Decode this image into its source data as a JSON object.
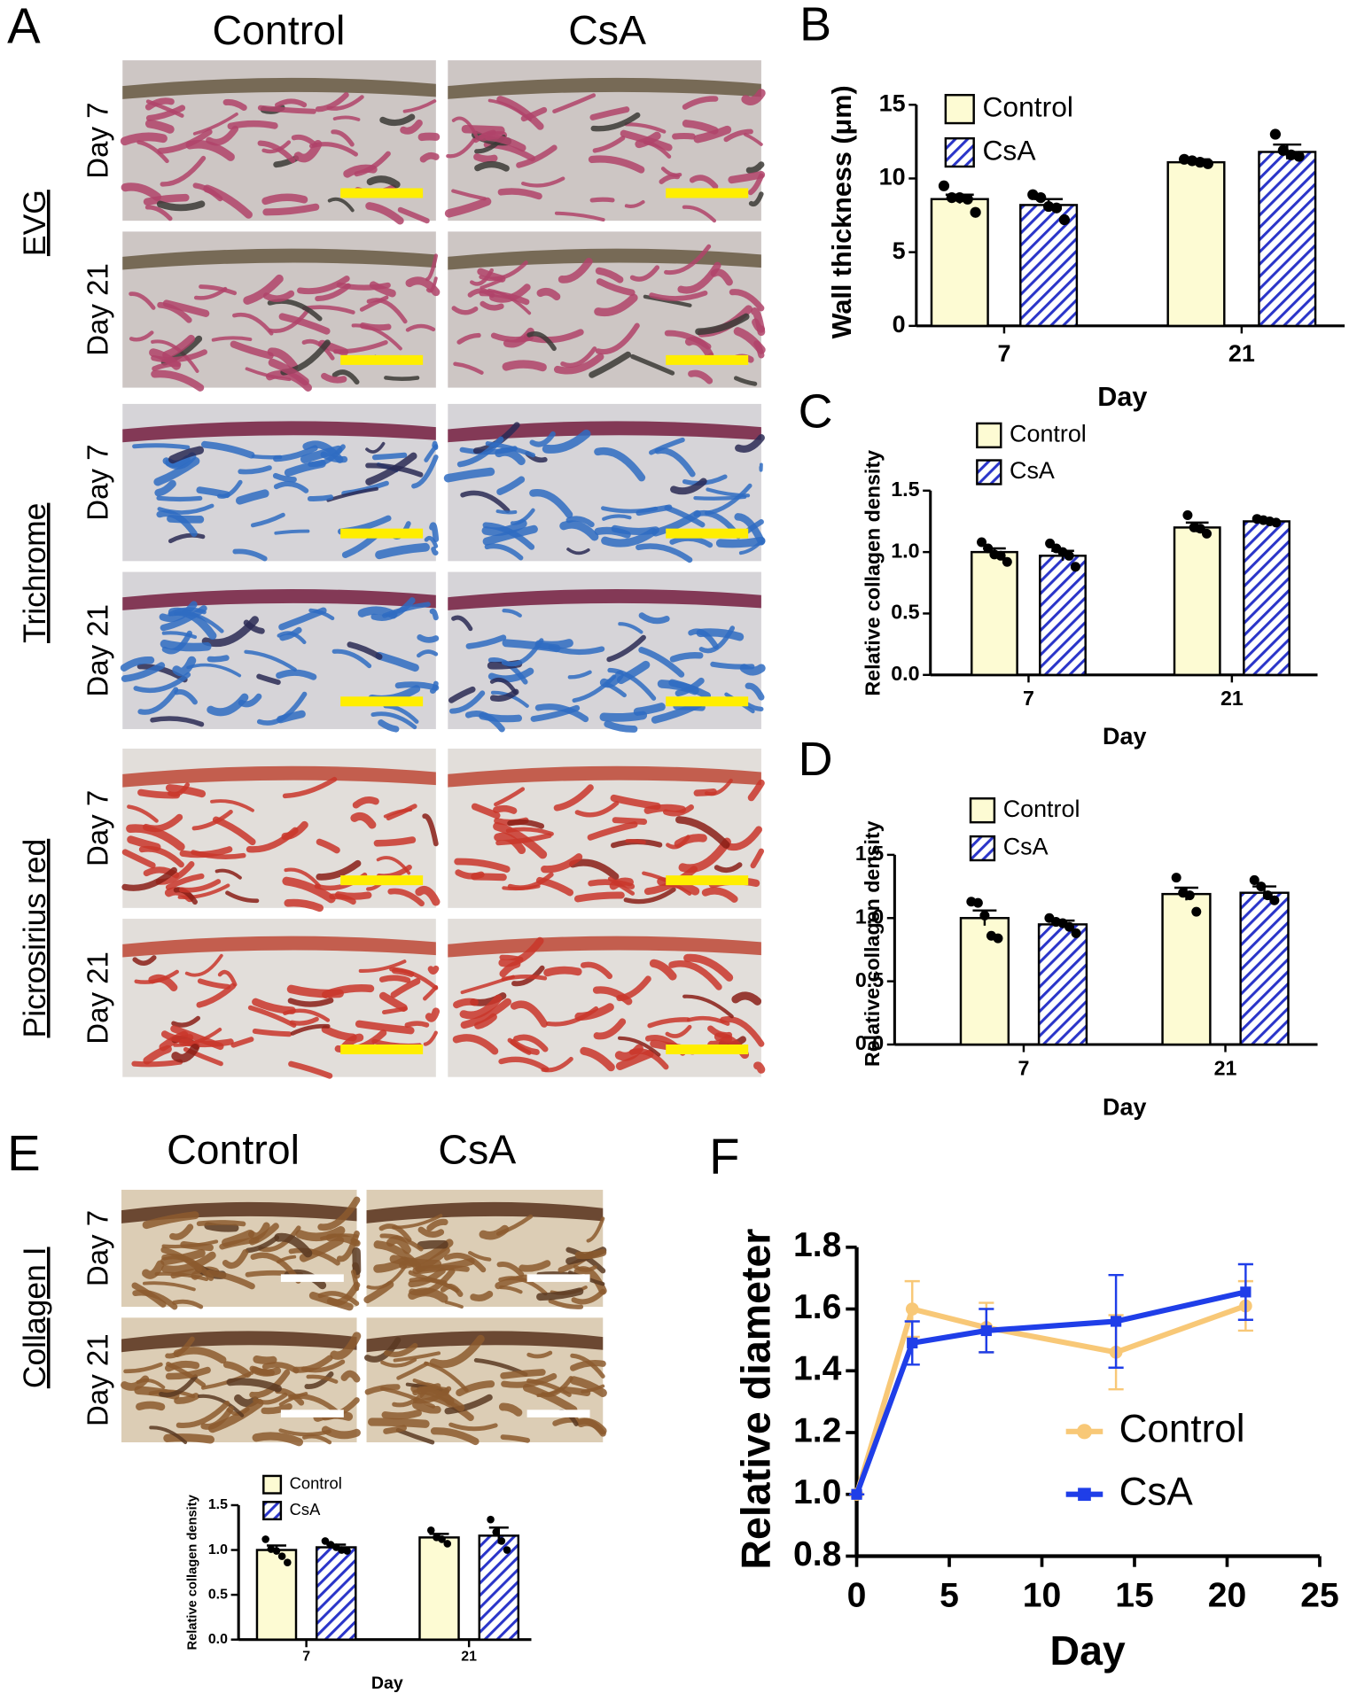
{
  "histology": {
    "panel_a": {
      "label": "A",
      "columns": [
        "Control",
        "CsA"
      ],
      "stains": [
        "EVG",
        "Trichrome",
        "Picrosirius red"
      ],
      "rows": [
        "Day 7",
        "Day 21"
      ]
    },
    "panel_e": {
      "label": "E",
      "columns": [
        "Control",
        "CsA"
      ],
      "stain": "Collagen I",
      "rows": [
        "Day 7",
        "Day 21"
      ]
    }
  },
  "chart_data": [
    {
      "type": "bar",
      "panel": "B",
      "ylabel": "Wall thickness (μm)",
      "xlabel": "Day",
      "categories": [
        "7",
        "21"
      ],
      "ylim": [
        0,
        15
      ],
      "yticks": [
        0,
        5,
        10,
        15
      ],
      "series": [
        {
          "name": "Control",
          "color": "#fdfbd3",
          "values": [
            8.6,
            11.1
          ],
          "errors": [
            0.3,
            0.2
          ],
          "points": [
            [
              9.5,
              8.7,
              8.7,
              8.6,
              7.7
            ],
            [
              11.3,
              11.2,
              11.1,
              11.0
            ]
          ]
        },
        {
          "name": "CsA",
          "color": "#2a35c9",
          "values": [
            8.2,
            11.8
          ],
          "errors": [
            0.4,
            0.5
          ],
          "points": [
            [
              8.9,
              8.7,
              8.1,
              8.0,
              7.2
            ],
            [
              13.0,
              11.9,
              11.6,
              11.5
            ]
          ]
        }
      ]
    },
    {
      "type": "bar",
      "panel": "C",
      "ylabel": "Relative collagen density",
      "xlabel": "Day",
      "categories": [
        "7",
        "21"
      ],
      "ylim": [
        0,
        1.5
      ],
      "yticks": [
        {
          "value": 0,
          "label": "0.0"
        },
        0.5,
        {
          "value": 1,
          "label": "1.0"
        },
        1.5
      ],
      "series": [
        {
          "name": "Control",
          "color": "#fdfbd3",
          "values": [
            1.0,
            1.2
          ],
          "errors": [
            0.03,
            0.04
          ],
          "points": [
            [
              1.08,
              1.03,
              0.98,
              0.97,
              0.92
            ],
            [
              1.3,
              1.2,
              1.19,
              1.15
            ]
          ]
        },
        {
          "name": "CsA",
          "color": "#2a35c9",
          "values": [
            0.97,
            1.25
          ],
          "errors": [
            0.04,
            0.01
          ],
          "points": [
            [
              1.07,
              1.03,
              1.0,
              0.97,
              0.88
            ],
            [
              1.27,
              1.26,
              1.25,
              1.24
            ]
          ]
        }
      ]
    },
    {
      "type": "bar",
      "panel": "D",
      "ylabel": "Relative collagen density",
      "xlabel": "Day",
      "categories": [
        "7",
        "21"
      ],
      "ylim": [
        0,
        1.5
      ],
      "yticks": [
        {
          "value": 0,
          "label": "0.0"
        },
        0.5,
        {
          "value": 1,
          "label": "1.0"
        },
        1.5
      ],
      "series": [
        {
          "name": "Control",
          "color": "#fdfbd3",
          "values": [
            1.0,
            1.19
          ],
          "errors": [
            0.06,
            0.05
          ],
          "points": [
            [
              1.13,
              1.12,
              1.02,
              0.86,
              0.84
            ],
            [
              1.32,
              1.2,
              1.18,
              1.05
            ]
          ]
        },
        {
          "name": "CsA",
          "color": "#2a35c9",
          "values": [
            0.95,
            1.2
          ],
          "errors": [
            0.03,
            0.05
          ],
          "points": [
            [
              1.0,
              0.97,
              0.96,
              0.93,
              0.88
            ],
            [
              1.3,
              1.25,
              1.18,
              1.14
            ]
          ]
        }
      ]
    },
    {
      "type": "bar",
      "ylabel": "Relative collagen density",
      "xlabel": "Day",
      "categories": [
        "7",
        "21"
      ],
      "ylim": [
        0,
        1.5
      ],
      "yticks": [
        {
          "value": 0,
          "label": "0.0"
        },
        0.5,
        {
          "value": 1,
          "label": "1.0"
        },
        1.5
      ],
      "series": [
        {
          "name": "Control",
          "color": "#fdfbd3",
          "values": [
            1.0,
            1.14
          ],
          "errors": [
            0.05,
            0.04
          ],
          "points": [
            [
              1.12,
              1.01,
              0.99,
              0.93,
              0.86
            ],
            [
              1.22,
              1.14,
              1.12,
              1.07
            ]
          ]
        },
        {
          "name": "CsA",
          "color": "#2a35c9",
          "values": [
            1.03,
            1.16
          ],
          "errors": [
            0.03,
            0.09
          ],
          "points": [
            [
              1.1,
              1.06,
              1.03,
              1.0,
              0.99
            ],
            [
              1.34,
              1.2,
              1.1,
              1.0
            ]
          ]
        }
      ]
    },
    {
      "type": "line",
      "panel": "F",
      "ylabel": "Relative diameter",
      "xlabel": "Day",
      "legend": "right",
      "x": [
        0,
        3,
        7,
        14,
        21
      ],
      "xlim": [
        0,
        25
      ],
      "xticks": [
        0,
        5,
        10,
        15,
        20,
        25
      ],
      "ylim": [
        0.8,
        1.8
      ],
      "yticks": [
        0.8,
        {
          "value": 1,
          "label": "1.0"
        },
        1.2,
        1.4,
        1.6,
        1.8
      ],
      "series": [
        {
          "name": "Control",
          "color": "#f8c877",
          "marker": "circle",
          "values": [
            1.0,
            1.6,
            1.54,
            1.46,
            1.61
          ],
          "errors": [
            0,
            0.09,
            0.08,
            0.12,
            0.08
          ]
        },
        {
          "name": "CsA",
          "color": "#1f3ee8",
          "marker": "square",
          "values": [
            1.0,
            1.49,
            1.53,
            1.56,
            1.655
          ],
          "errors": [
            0,
            0.07,
            0.07,
            0.15,
            0.09
          ]
        }
      ]
    }
  ]
}
